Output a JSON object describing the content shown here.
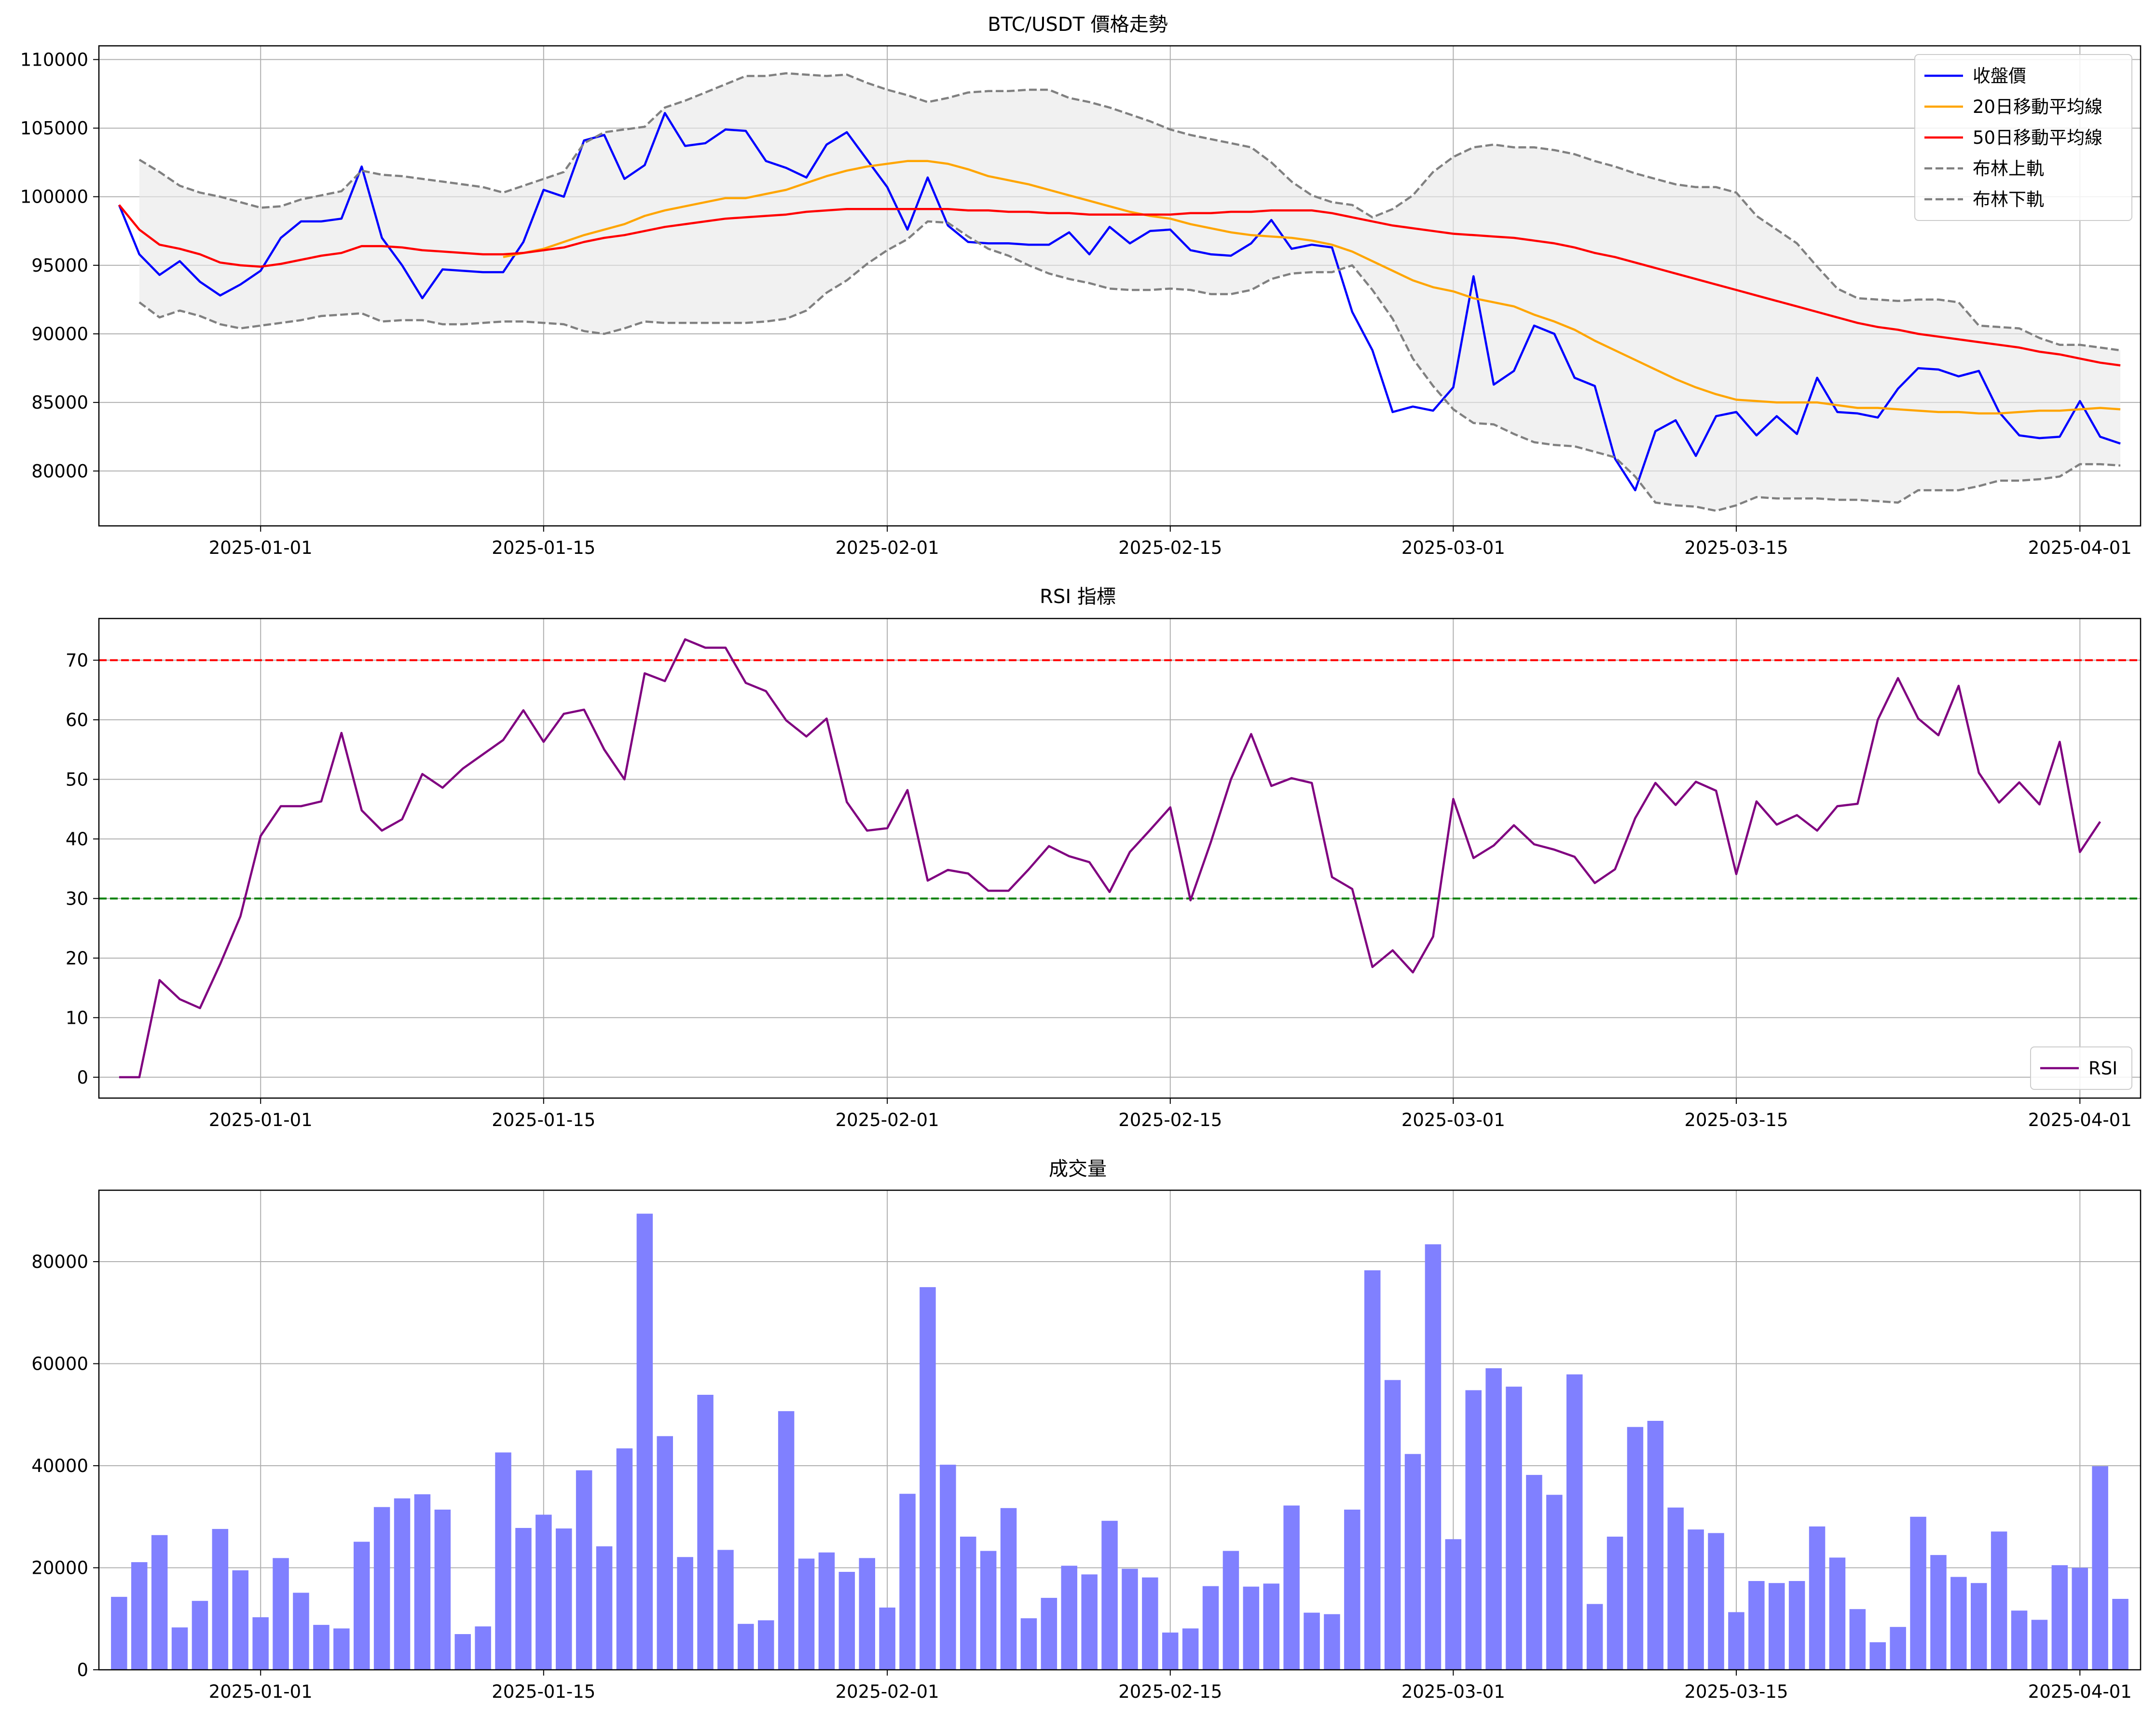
{
  "chart_data": [
    {
      "type": "line",
      "title": "BTC/USDT 價格走勢",
      "xlabel": "",
      "ylabel": "",
      "x_start": "2024-12-25",
      "xlim": [
        "2024-12-24",
        "2025-04-04"
      ],
      "xticks": [
        "2025-01-01",
        "2025-01-15",
        "2025-02-01",
        "2025-02-15",
        "2025-03-01",
        "2025-03-15",
        "2025-04-01"
      ],
      "ylim": [
        76000,
        111000
      ],
      "yticks": [
        80000,
        85000,
        90000,
        95000,
        100000,
        105000,
        110000
      ],
      "grid": true,
      "legend_position": "top-right",
      "band": {
        "upper": "布林上軌",
        "lower": "布林下軌",
        "color": "#e8e8e8"
      },
      "series": [
        {
          "name": "收盤價",
          "color": "#0000ff",
          "style": "solid",
          "values": [
            99400,
            95800,
            94300,
            95300,
            93800,
            92800,
            93600,
            94600,
            97000,
            98200,
            98200,
            98400,
            102200,
            97000,
            95000,
            92600,
            94700,
            94600,
            94500,
            94500,
            96700,
            100500,
            100000,
            104100,
            104500,
            101300,
            102300,
            106100,
            103700,
            103900,
            104900,
            104800,
            102600,
            102100,
            101400,
            103800,
            104700,
            102700,
            100700,
            97600,
            101400,
            97900,
            96700,
            96600,
            96600,
            96500,
            96500,
            97400,
            95800,
            97800,
            96600,
            97500,
            97600,
            96100,
            95800,
            95700,
            96600,
            98300,
            96200,
            96500,
            96300,
            91600,
            88800,
            84300,
            84700,
            84400,
            86100,
            94200,
            86300,
            87300,
            90600,
            90000,
            86800,
            86200,
            80900,
            78600,
            82900,
            83700,
            81100,
            84000,
            84300,
            82600,
            84000,
            82700,
            86800,
            84300,
            84200,
            83900,
            86000,
            87500,
            87400,
            86900,
            87300,
            84300,
            82600,
            82400,
            82500,
            85100,
            82500,
            82000
          ]
        },
        {
          "name": "20日移動平均線",
          "color": "#ffa500",
          "style": "solid",
          "values": [
            null,
            null,
            null,
            null,
            null,
            null,
            null,
            null,
            null,
            null,
            null,
            null,
            null,
            null,
            null,
            null,
            null,
            null,
            null,
            95600,
            95900,
            96200,
            96700,
            97200,
            97600,
            98000,
            98600,
            99000,
            99300,
            99600,
            99900,
            99900,
            100200,
            100500,
            101000,
            101500,
            101900,
            102200,
            102400,
            102600,
            102600,
            102400,
            102000,
            101500,
            101200,
            100900,
            100500,
            100100,
            99700,
            99300,
            98900,
            98600,
            98400,
            98000,
            97700,
            97400,
            97200,
            97100,
            97000,
            96800,
            96500,
            96000,
            95300,
            94600,
            93900,
            93400,
            93100,
            92600,
            92300,
            92000,
            91400,
            90900,
            90300,
            89500,
            88800,
            88100,
            87400,
            86700,
            86100,
            85600,
            85200,
            85100,
            85000,
            85000,
            85000,
            84800,
            84600,
            84600,
            84500,
            84400,
            84300,
            84300,
            84200,
            84200,
            84300,
            84400,
            84400,
            84500,
            84600,
            84500
          ]
        },
        {
          "name": "50日移動平均線",
          "color": "#ff0000",
          "style": "solid",
          "values": [
            99400,
            97600,
            96500,
            96200,
            95800,
            95200,
            95000,
            94900,
            95100,
            95400,
            95700,
            95900,
            96400,
            96400,
            96300,
            96100,
            96000,
            95900,
            95800,
            95800,
            95900,
            96100,
            96300,
            96700,
            97000,
            97200,
            97500,
            97800,
            98000,
            98200,
            98400,
            98500,
            98600,
            98700,
            98900,
            99000,
            99100,
            99100,
            99100,
            99100,
            99100,
            99100,
            99000,
            99000,
            98900,
            98900,
            98800,
            98800,
            98700,
            98700,
            98700,
            98700,
            98700,
            98800,
            98800,
            98900,
            98900,
            99000,
            99000,
            99000,
            98800,
            98500,
            98200,
            97900,
            97700,
            97500,
            97300,
            97200,
            97100,
            97000,
            96800,
            96600,
            96300,
            95900,
            95600,
            95200,
            94800,
            94400,
            94000,
            93600,
            93200,
            92800,
            92400,
            92000,
            91600,
            91200,
            90800,
            90500,
            90300,
            90000,
            89800,
            89600,
            89400,
            89200,
            89000,
            88700,
            88500,
            88200,
            87900,
            87700
          ]
        },
        {
          "name": "布林上軌",
          "color": "#808080",
          "style": "dashed",
          "values": [
            null,
            102700,
            101800,
            100800,
            100300,
            100000,
            99600,
            99200,
            99300,
            99800,
            100100,
            100400,
            101900,
            101600,
            101500,
            101300,
            101100,
            100900,
            100700,
            100300,
            100800,
            101300,
            101800,
            103900,
            104700,
            104900,
            105100,
            106500,
            107000,
            107600,
            108200,
            108800,
            108800,
            109000,
            108900,
            108800,
            108900,
            108300,
            107800,
            107400,
            106900,
            107200,
            107600,
            107700,
            107700,
            107800,
            107800,
            107200,
            106900,
            106500,
            106000,
            105500,
            104900,
            104500,
            104200,
            103900,
            103600,
            102500,
            101100,
            100100,
            99600,
            99400,
            98500,
            99100,
            100100,
            101800,
            102900,
            103600,
            103800,
            103600,
            103600,
            103400,
            103100,
            102600,
            102200,
            101700,
            101300,
            100900,
            100700,
            100700,
            100300,
            98600,
            97600,
            96600,
            94900,
            93300,
            92600,
            92500,
            92400,
            92500,
            92500,
            92300,
            90600,
            90500,
            90400,
            89700,
            89200,
            89200,
            89000,
            88800
          ]
        },
        {
          "name": "布林下軌",
          "color": "#808080",
          "style": "dashed",
          "values": [
            null,
            92300,
            91200,
            91700,
            91300,
            90700,
            90400,
            90600,
            90800,
            91000,
            91300,
            91400,
            91500,
            90900,
            91000,
            91000,
            90700,
            90700,
            90800,
            90900,
            90900,
            90800,
            90700,
            90200,
            90000,
            90400,
            90900,
            90800,
            90800,
            90800,
            90800,
            90800,
            90900,
            91100,
            91700,
            93000,
            93900,
            95100,
            96100,
            96900,
            98200,
            98100,
            97100,
            96200,
            95700,
            95000,
            94400,
            94000,
            93700,
            93300,
            93200,
            93200,
            93300,
            93200,
            92900,
            92900,
            93200,
            94000,
            94400,
            94500,
            94500,
            95000,
            93200,
            91100,
            88200,
            86200,
            84500,
            83500,
            83400,
            82700,
            82100,
            81900,
            81800,
            81400,
            81000,
            79600,
            77700,
            77500,
            77400,
            77100,
            77500,
            78100,
            78000,
            78000,
            78000,
            77900,
            77900,
            77800,
            77700,
            78600,
            78600,
            78600,
            78900,
            79300,
            79300,
            79400,
            79600,
            80500,
            80500,
            80400
          ]
        }
      ]
    },
    {
      "type": "line",
      "title": "RSI 指標",
      "xlabel": "",
      "ylabel": "",
      "x_start": "2024-12-25",
      "xlim": [
        "2024-12-24",
        "2025-04-04"
      ],
      "xticks": [
        "2025-01-01",
        "2025-01-15",
        "2025-02-01",
        "2025-02-15",
        "2025-03-01",
        "2025-03-15",
        "2025-04-01"
      ],
      "ylim": [
        -3.5,
        77
      ],
      "yticks": [
        0,
        10,
        20,
        30,
        40,
        50,
        60,
        70
      ],
      "grid": true,
      "legend_position": "bottom-right",
      "reference_lines": [
        {
          "y": 70,
          "color": "#ff0000",
          "style": "dashed"
        },
        {
          "y": 30,
          "color": "#008000",
          "style": "dashed"
        }
      ],
      "series": [
        {
          "name": "RSI",
          "color": "#800080",
          "style": "solid",
          "values": [
            0,
            0,
            16.3,
            13.1,
            11.6,
            19,
            27,
            40.5,
            45.5,
            45.5,
            46.3,
            57.8,
            44.8,
            41.4,
            43.3,
            50.9,
            48.6,
            51.8,
            54.2,
            56.6,
            61.6,
            56.3,
            61,
            61.7,
            55,
            50,
            67.8,
            66.5,
            73.5,
            72.1,
            72.1,
            66.2,
            64.8,
            59.9,
            57.2,
            60.2,
            46.2,
            41.4,
            41.8,
            48.2,
            33,
            34.8,
            34.2,
            31.3,
            31.3,
            34.9,
            38.8,
            37.1,
            36.1,
            31.1,
            37.8,
            41.5,
            45.3,
            29.7,
            39.4,
            50,
            57.6,
            48.9,
            50.2,
            49.4,
            33.6,
            31.6,
            18.5,
            21.3,
            17.6,
            23.6,
            46.7,
            36.8,
            38.9,
            42.3,
            39.1,
            38.2,
            37,
            32.6,
            34.9,
            43.5,
            49.4,
            45.7,
            49.6,
            48.1,
            34.1,
            46.3,
            42.4,
            44,
            41.4,
            45.5,
            45.9,
            60,
            67,
            60.2,
            57.4,
            65.7,
            51.1,
            46.1,
            49.5,
            45.8,
            56.3,
            37.8,
            42.9
          ]
        }
      ]
    },
    {
      "type": "bar",
      "title": "成交量",
      "xlabel": "",
      "ylabel": "",
      "x_start": "2024-12-25",
      "xlim": [
        "2024-12-24",
        "2025-04-04"
      ],
      "xticks": [
        "2025-01-01",
        "2025-01-15",
        "2025-02-01",
        "2025-02-15",
        "2025-03-01",
        "2025-03-15",
        "2025-04-01"
      ],
      "ylim": [
        0,
        94000
      ],
      "yticks": [
        0,
        20000,
        40000,
        60000,
        80000
      ],
      "grid": true,
      "color": "#8080ff",
      "values": [
        14300,
        21100,
        26400,
        8300,
        13500,
        27600,
        19500,
        10300,
        21900,
        15100,
        8800,
        8100,
        25100,
        31900,
        33600,
        34400,
        31400,
        7000,
        8500,
        42600,
        27800,
        30400,
        27700,
        39100,
        24200,
        43400,
        89400,
        45800,
        22100,
        53900,
        23500,
        9000,
        9700,
        50700,
        21800,
        23000,
        19200,
        21900,
        12200,
        34500,
        75000,
        40200,
        26100,
        23300,
        31700,
        10100,
        14100,
        20400,
        18700,
        29200,
        19800,
        18100,
        7300,
        8100,
        16400,
        23300,
        16300,
        16900,
        32200,
        11200,
        10900,
        31400,
        78300,
        56800,
        42300,
        83400,
        25600,
        54800,
        59100,
        55500,
        38200,
        34300,
        57900,
        12900,
        26100,
        47600,
        48800,
        31800,
        27500,
        26800,
        11300,
        17400,
        17000,
        17400,
        28100,
        22000,
        11900,
        5400,
        8400,
        30000,
        22500,
        18200,
        17000,
        27100,
        11600,
        9800,
        20500,
        20000,
        39900,
        13900
      ]
    }
  ]
}
